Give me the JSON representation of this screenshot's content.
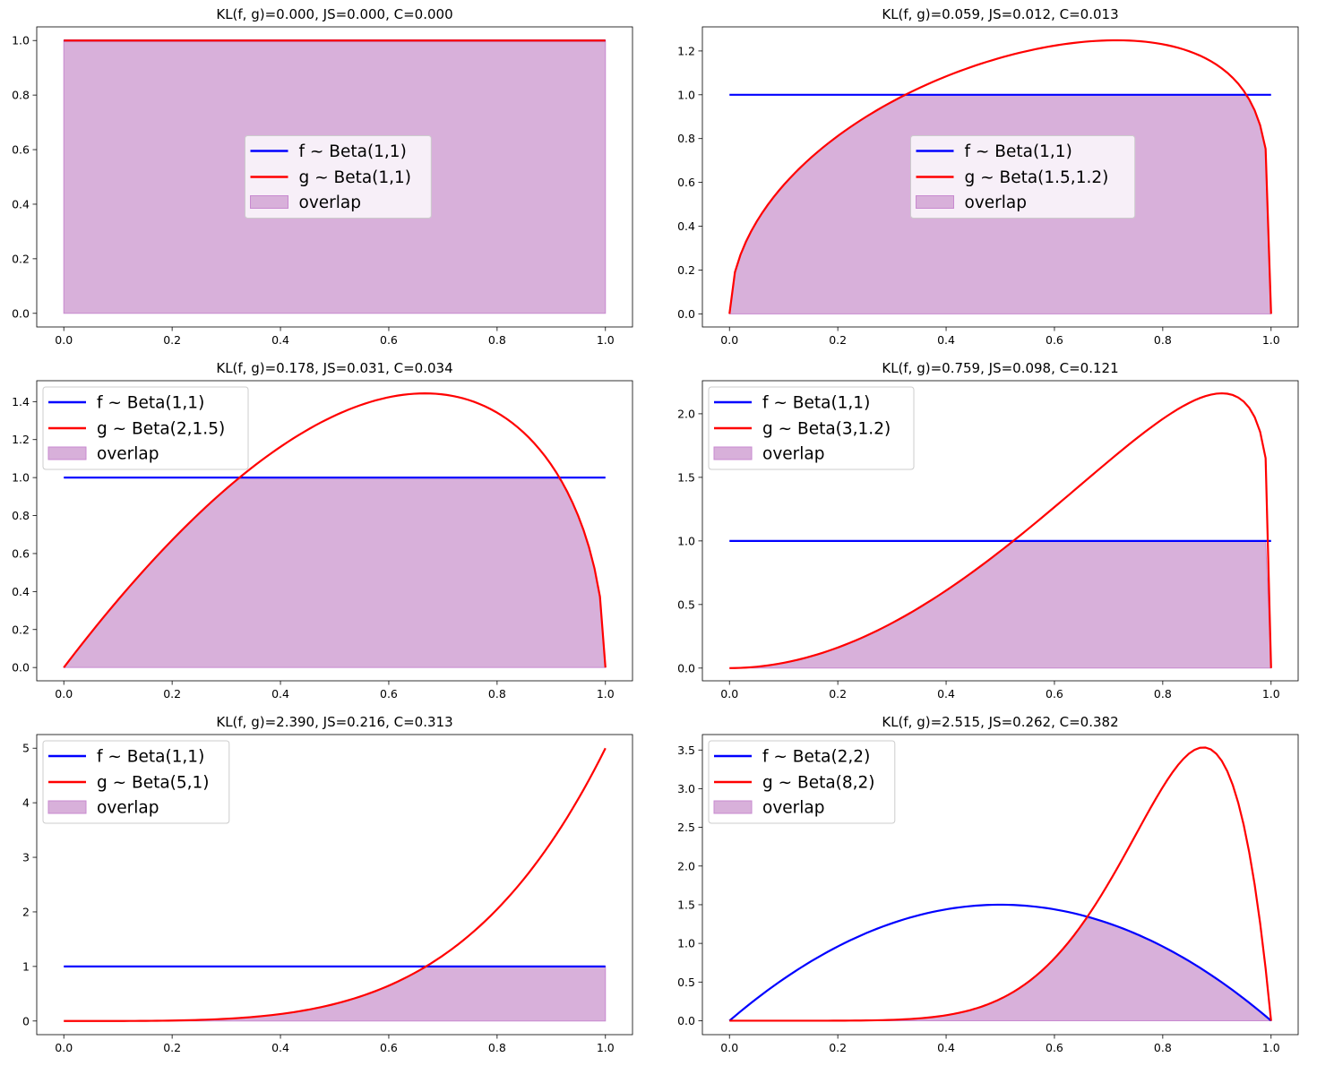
{
  "figure": {
    "colors": {
      "f": "#0000ff",
      "g": "#ff0000",
      "overlap_fill": "#d8b0da",
      "overlap_edge": "#c88ad0",
      "axes": "#000000"
    },
    "overlap_label": "overlap"
  },
  "chart_data": [
    {
      "type": "line",
      "title": "KL(f, g)=0.000, JS=0.000, C=0.000",
      "xlabel": "",
      "ylabel": "",
      "xlim": [
        0,
        1
      ],
      "ylim": [
        -0.05,
        1.05
      ],
      "xticks": [
        0,
        0.2,
        0.4,
        0.6,
        0.8,
        1.0
      ],
      "xtick_labels": [
        "0.0",
        "0.2",
        "0.4",
        "0.6",
        "0.8",
        "1.0"
      ],
      "yticks": [
        0,
        0.2,
        0.4,
        0.6,
        0.8,
        1.0
      ],
      "ytick_labels": [
        "0.0",
        "0.2",
        "0.4",
        "0.6",
        "0.8",
        "1.0"
      ],
      "f": {
        "label": "f ~ Beta(1,1)",
        "a": 1,
        "b": 1
      },
      "g": {
        "label": "g ~ Beta(1,1)",
        "a": 1,
        "b": 1
      },
      "legend_loc": "center"
    },
    {
      "type": "line",
      "title": "KL(f, g)=0.059, JS=0.012, C=0.013",
      "xlabel": "",
      "ylabel": "",
      "xlim": [
        0,
        1
      ],
      "ylim": [
        -0.06,
        1.31
      ],
      "xticks": [
        0,
        0.2,
        0.4,
        0.6,
        0.8,
        1.0
      ],
      "xtick_labels": [
        "0.0",
        "0.2",
        "0.4",
        "0.6",
        "0.8",
        "1.0"
      ],
      "yticks": [
        0,
        0.2,
        0.4,
        0.6,
        0.8,
        1.0,
        1.2
      ],
      "ytick_labels": [
        "0.0",
        "0.2",
        "0.4",
        "0.6",
        "0.8",
        "1.0",
        "1.2"
      ],
      "f": {
        "label": "f ~ Beta(1,1)",
        "a": 1,
        "b": 1
      },
      "g": {
        "label": "g ~ Beta(1.5,1.2)",
        "a": 1.5,
        "b": 1.2
      },
      "legend_loc": "center"
    },
    {
      "type": "line",
      "title": "KL(f, g)=0.178, JS=0.031, C=0.034",
      "xlabel": "",
      "ylabel": "",
      "xlim": [
        0,
        1
      ],
      "ylim": [
        -0.07,
        1.51
      ],
      "xticks": [
        0,
        0.2,
        0.4,
        0.6,
        0.8,
        1.0
      ],
      "xtick_labels": [
        "0.0",
        "0.2",
        "0.4",
        "0.6",
        "0.8",
        "1.0"
      ],
      "yticks": [
        0,
        0.2,
        0.4,
        0.6,
        0.8,
        1.0,
        1.2,
        1.4
      ],
      "ytick_labels": [
        "0.0",
        "0.2",
        "0.4",
        "0.6",
        "0.8",
        "1.0",
        "1.2",
        "1.4"
      ],
      "f": {
        "label": "f ~ Beta(1,1)",
        "a": 1,
        "b": 1
      },
      "g": {
        "label": "g ~ Beta(2,1.5)",
        "a": 2,
        "b": 1.5
      },
      "legend_loc": "upper left"
    },
    {
      "type": "line",
      "title": "KL(f, g)=0.759, JS=0.098, C=0.121",
      "xlabel": "",
      "ylabel": "",
      "xlim": [
        0,
        1
      ],
      "ylim": [
        -0.1,
        2.26
      ],
      "xticks": [
        0,
        0.2,
        0.4,
        0.6,
        0.8,
        1.0
      ],
      "xtick_labels": [
        "0.0",
        "0.2",
        "0.4",
        "0.6",
        "0.8",
        "1.0"
      ],
      "yticks": [
        0,
        0.5,
        1.0,
        1.5,
        2.0
      ],
      "ytick_labels": [
        "0.0",
        "0.5",
        "1.0",
        "1.5",
        "2.0"
      ],
      "f": {
        "label": "f ~ Beta(1,1)",
        "a": 1,
        "b": 1
      },
      "g": {
        "label": "g ~ Beta(3,1.2)",
        "a": 3,
        "b": 1.2
      },
      "legend_loc": "upper left"
    },
    {
      "type": "line",
      "title": "KL(f, g)=2.390, JS=0.216, C=0.313",
      "xlabel": "",
      "ylabel": "",
      "xlim": [
        0,
        1
      ],
      "ylim": [
        -0.25,
        5.25
      ],
      "xticks": [
        0,
        0.2,
        0.4,
        0.6,
        0.8,
        1.0
      ],
      "xtick_labels": [
        "0.0",
        "0.2",
        "0.4",
        "0.6",
        "0.8",
        "1.0"
      ],
      "yticks": [
        0,
        1,
        2,
        3,
        4,
        5
      ],
      "ytick_labels": [
        "0",
        "1",
        "2",
        "3",
        "4",
        "5"
      ],
      "f": {
        "label": "f ~ Beta(1,1)",
        "a": 1,
        "b": 1
      },
      "g": {
        "label": "g ~ Beta(5,1)",
        "a": 5,
        "b": 1
      },
      "legend_loc": "upper left"
    },
    {
      "type": "line",
      "title": "KL(f, g)=2.515, JS=0.262, C=0.382",
      "xlabel": "",
      "ylabel": "",
      "xlim": [
        0,
        1
      ],
      "ylim": [
        -0.18,
        3.7
      ],
      "xticks": [
        0,
        0.2,
        0.4,
        0.6,
        0.8,
        1.0
      ],
      "xtick_labels": [
        "0.0",
        "0.2",
        "0.4",
        "0.6",
        "0.8",
        "1.0"
      ],
      "yticks": [
        0,
        0.5,
        1.0,
        1.5,
        2.0,
        2.5,
        3.0,
        3.5
      ],
      "ytick_labels": [
        "0.0",
        "0.5",
        "1.0",
        "1.5",
        "2.0",
        "2.5",
        "3.0",
        "3.5"
      ],
      "f": {
        "label": "f ~ Beta(2,2)",
        "a": 2,
        "b": 2
      },
      "g": {
        "label": "g ~ Beta(8,2)",
        "a": 8,
        "b": 2
      },
      "legend_loc": "upper left"
    }
  ]
}
